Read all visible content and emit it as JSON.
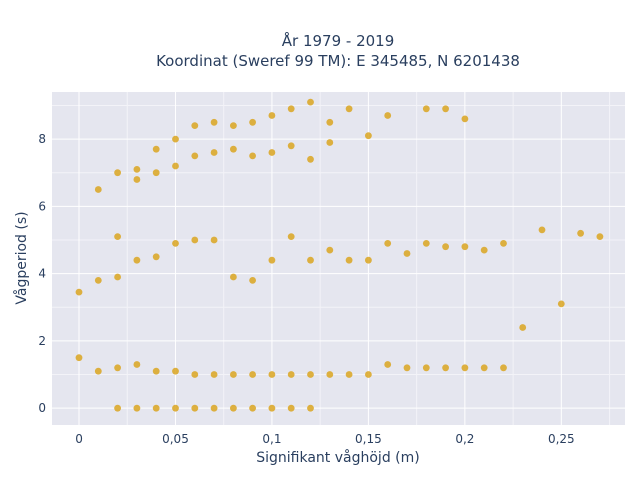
{
  "chart_data": {
    "type": "scatter",
    "title": "År 1979 - 2019",
    "subtitle": "Koordinat (Sweref 99 TM): E 345485, N 6201438",
    "xlabel": "Signifikant våghöjd (m)",
    "ylabel": "Vågperiod (s)",
    "xlim": [
      -0.014,
      0.283
    ],
    "ylim": [
      -0.5,
      9.4
    ],
    "xticks": [
      0,
      0.05,
      0.1,
      0.15,
      0.2,
      0.25
    ],
    "xtick_labels": [
      "0",
      "0,05",
      "0,1",
      "0,15",
      "0,2",
      "0,25"
    ],
    "yticks": [
      0,
      2,
      4,
      6,
      8
    ],
    "ytick_labels": [
      "0",
      "2",
      "4",
      "6",
      "8"
    ],
    "grid": true,
    "marker_color": "#DAA520",
    "series": [
      {
        "x": [
          0,
          0,
          0.01,
          0.01,
          0.01,
          0.02,
          0.02,
          0.02,
          0.02,
          0.02,
          0.03,
          0.03,
          0.03,
          0.03,
          0.03,
          0.04,
          0.04,
          0.04,
          0.04,
          0.04,
          0.05,
          0.05,
          0.05,
          0.05,
          0.05,
          0.06,
          0.06,
          0.06,
          0.06,
          0.06,
          0.07,
          0.07,
          0.07,
          0.07,
          0.07,
          0.08,
          0.08,
          0.08,
          0.08,
          0.08,
          0.09,
          0.09,
          0.09,
          0.09,
          0.09,
          0.1,
          0.1,
          0.1,
          0.1,
          0.1,
          0.11,
          0.11,
          0.11,
          0.11,
          0.11,
          0.12,
          0.12,
          0.12,
          0.12,
          0.12,
          0.13,
          0.13,
          0.13,
          0.13,
          0.14,
          0.14,
          0.14,
          0.15,
          0.15,
          0.15,
          0.16,
          0.16,
          0.16,
          0.17,
          0.17,
          0.18,
          0.18,
          0.18,
          0.19,
          0.19,
          0.19,
          0.2,
          0.2,
          0.2,
          0.21,
          0.21,
          0.22,
          0.22,
          0.23,
          0.24,
          0.25,
          0.26,
          0.27
        ],
        "y": [
          1.5,
          3.45,
          1.1,
          3.8,
          6.5,
          0,
          1.2,
          3.9,
          5.1,
          7.0,
          0,
          1.3,
          4.4,
          6.8,
          7.1,
          0,
          1.1,
          4.5,
          7.0,
          7.7,
          0,
          1.1,
          4.9,
          7.2,
          8.0,
          0,
          1.0,
          5.0,
          7.5,
          8.4,
          0,
          1.0,
          5.0,
          7.6,
          8.5,
          0,
          1.0,
          3.9,
          7.7,
          8.4,
          0,
          1.0,
          3.8,
          7.5,
          8.5,
          0,
          1.0,
          4.4,
          7.6,
          8.7,
          0,
          1.0,
          5.1,
          7.8,
          8.9,
          0,
          1.0,
          4.4,
          7.4,
          9.1,
          1.0,
          4.7,
          7.9,
          8.5,
          1.0,
          4.4,
          8.9,
          1.0,
          4.4,
          8.1,
          1.3,
          4.9,
          8.7,
          1.2,
          4.6,
          1.2,
          4.9,
          8.9,
          1.2,
          4.8,
          8.9,
          1.2,
          4.8,
          8.6,
          1.2,
          4.7,
          1.2,
          4.9,
          2.4,
          5.3,
          3.1,
          5.2,
          5.1
        ]
      }
    ]
  }
}
